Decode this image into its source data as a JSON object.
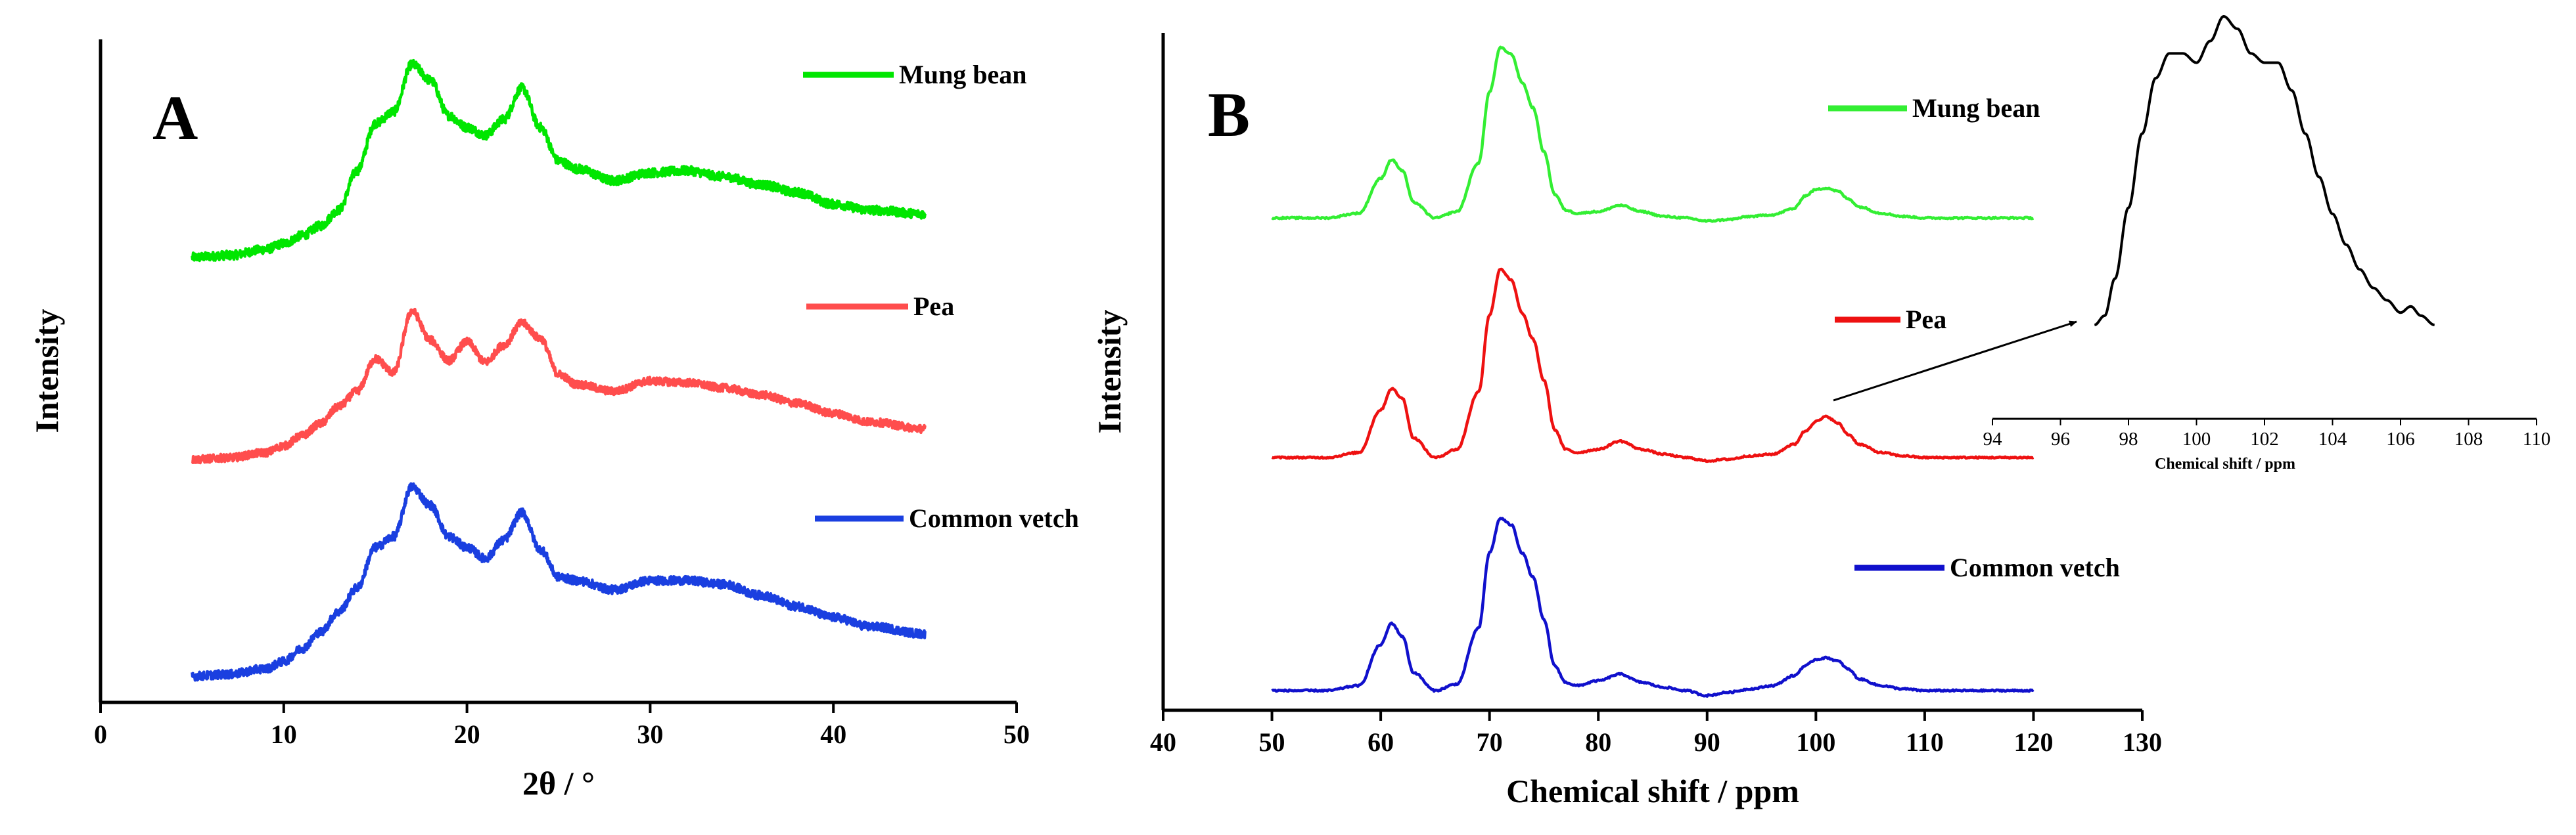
{
  "chart_data": [
    {
      "panel": "A",
      "type": "line",
      "title": "",
      "xlabel": "2θ / °",
      "ylabel": "Intensity",
      "xlim": [
        0,
        50
      ],
      "xticks": [
        "0",
        "10",
        "20",
        "30",
        "40",
        "50"
      ],
      "yticks": [],
      "grid": false,
      "legend_placement": "right, beside each trace",
      "noise": "high",
      "series": [
        {
          "name": "Mung bean",
          "color": "#00e600",
          "x": [
            5,
            7,
            9,
            10,
            11,
            12,
            13,
            14,
            15,
            16,
            17,
            18,
            19,
            20,
            21,
            22,
            23,
            24,
            25,
            26,
            28,
            30,
            32,
            34,
            36,
            38,
            40,
            42,
            45
          ],
          "y": [
            0,
            1,
            4,
            7,
            11,
            16,
            24,
            44,
            68,
            74,
            98,
            90,
            72,
            66,
            62,
            70,
            86,
            66,
            49,
            45,
            39,
            43,
            44,
            41,
            37,
            33,
            27,
            24,
            22
          ]
        },
        {
          "name": "Pea",
          "color": "#ff4d4d",
          "x": [
            5,
            7,
            9,
            10,
            11,
            12,
            13,
            14,
            15,
            16,
            17,
            18,
            19,
            20,
            21,
            22,
            23,
            24,
            25,
            26,
            28,
            30,
            32,
            34,
            36,
            38,
            40,
            42,
            45
          ],
          "y": [
            0,
            1,
            4,
            8,
            14,
            21,
            31,
            40,
            59,
            51,
            87,
            70,
            58,
            69,
            57,
            67,
            80,
            71,
            50,
            44,
            40,
            46,
            45,
            42,
            38,
            33,
            27,
            22,
            18
          ]
        },
        {
          "name": "Common vetch",
          "color": "#1a3fe0",
          "x": [
            5,
            7,
            9,
            10,
            11,
            12,
            13,
            14,
            15,
            16,
            17,
            18,
            19,
            20,
            21,
            22,
            23,
            24,
            25,
            26,
            28,
            30,
            32,
            34,
            36,
            38,
            40,
            42,
            45
          ],
          "y": [
            0,
            1,
            4,
            8,
            15,
            24,
            35,
            48,
            70,
            76,
            103,
            93,
            76,
            70,
            64,
            74,
            89,
            69,
            54,
            52,
            47,
            52,
            52,
            50,
            44,
            38,
            32,
            27,
            23
          ]
        }
      ]
    },
    {
      "panel": "B",
      "type": "line",
      "title": "",
      "xlabel": "Chemical shift / ppm",
      "ylabel": "Intensity",
      "xlim": [
        40,
        130
      ],
      "xticks": [
        "40",
        "50",
        "60",
        "70",
        "80",
        "90",
        "100",
        "110",
        "120",
        "130"
      ],
      "yticks": [],
      "grid": false,
      "legend_placement": "right, beside each trace",
      "noise": "low",
      "series": [
        {
          "name": "Mung bean",
          "color": "#33ee33",
          "x": [
            50,
            55,
            58,
            60,
            61,
            62,
            63,
            65,
            67,
            69,
            70,
            71,
            72,
            73,
            74,
            75,
            76,
            77,
            78,
            80,
            82,
            84,
            86,
            88,
            90,
            92,
            94,
            96,
            98,
            99,
            100,
            101,
            102,
            103,
            104,
            106,
            108,
            110,
            115,
            120
          ],
          "y": [
            0,
            0,
            3,
            25,
            37,
            30,
            10,
            0,
            4,
            35,
            80,
            108,
            104,
            86,
            70,
            42,
            15,
            5,
            3,
            4,
            8,
            4,
            1,
            0,
            -2,
            -1,
            1,
            2,
            6,
            14,
            18,
            19,
            17,
            12,
            7,
            3,
            1,
            0,
            0,
            0
          ]
        },
        {
          "name": "Pea",
          "color": "#ee1111",
          "x": [
            50,
            55,
            58,
            60,
            61,
            62,
            63,
            65,
            67,
            69,
            70,
            71,
            72,
            73,
            74,
            75,
            76,
            77,
            78,
            80,
            82,
            84,
            86,
            88,
            90,
            92,
            94,
            96,
            98,
            99,
            100,
            101,
            102,
            103,
            104,
            106,
            108,
            110,
            115,
            120
          ],
          "y": [
            0,
            0,
            3,
            29,
            42,
            36,
            12,
            0,
            5,
            40,
            87,
            115,
            108,
            88,
            72,
            47,
            17,
            5,
            3,
            5,
            10,
            5,
            2,
            0,
            -2,
            -1,
            1,
            2,
            8,
            16,
            22,
            25,
            21,
            14,
            8,
            3,
            1,
            0,
            0,
            0
          ]
        },
        {
          "name": "Common vetch",
          "color": "#1010cc",
          "x": [
            50,
            55,
            58,
            60,
            61,
            62,
            63,
            65,
            67,
            69,
            70,
            71,
            72,
            73,
            74,
            75,
            76,
            77,
            78,
            80,
            82,
            84,
            86,
            88,
            90,
            92,
            94,
            96,
            98,
            99,
            100,
            101,
            102,
            103,
            104,
            106,
            108,
            110,
            115,
            120
          ],
          "y": [
            0,
            0,
            3,
            28,
            41,
            33,
            11,
            0,
            4,
            38,
            84,
            105,
            101,
            84,
            69,
            43,
            15,
            5,
            3,
            6,
            10,
            5,
            2,
            0,
            -3,
            -1,
            1,
            3,
            9,
            15,
            19,
            20,
            18,
            13,
            7,
            3,
            1,
            0,
            0,
            0
          ]
        }
      ]
    },
    {
      "panel": "B-inset",
      "type": "line",
      "title": "",
      "xlabel": "Chemical shift / ppm",
      "ylabel": "",
      "xlim": [
        94,
        110
      ],
      "xticks": [
        "94",
        "96",
        "98",
        "100",
        "102",
        "104",
        "106",
        "108",
        "110"
      ],
      "yticks": [],
      "grid": false,
      "annotation": "arrow from the Pea trace near 100 ppm to the inset",
      "series": [
        {
          "color": "#000000",
          "x": [
            97,
            97.3,
            97.6,
            98,
            98.4,
            98.8,
            99.2,
            99.6,
            100,
            100.4,
            100.8,
            101.2,
            101.6,
            102,
            102.4,
            102.8,
            103.2,
            103.6,
            104,
            104.4,
            104.8,
            105.2,
            105.6,
            106,
            106.3,
            106.6,
            107
          ],
          "y": [
            0,
            3,
            15,
            38,
            62,
            80,
            88,
            88,
            85,
            92,
            100,
            96,
            88,
            85,
            85,
            76,
            62,
            48,
            36,
            26,
            18,
            12,
            8,
            4,
            6,
            3,
            0
          ]
        }
      ]
    }
  ]
}
